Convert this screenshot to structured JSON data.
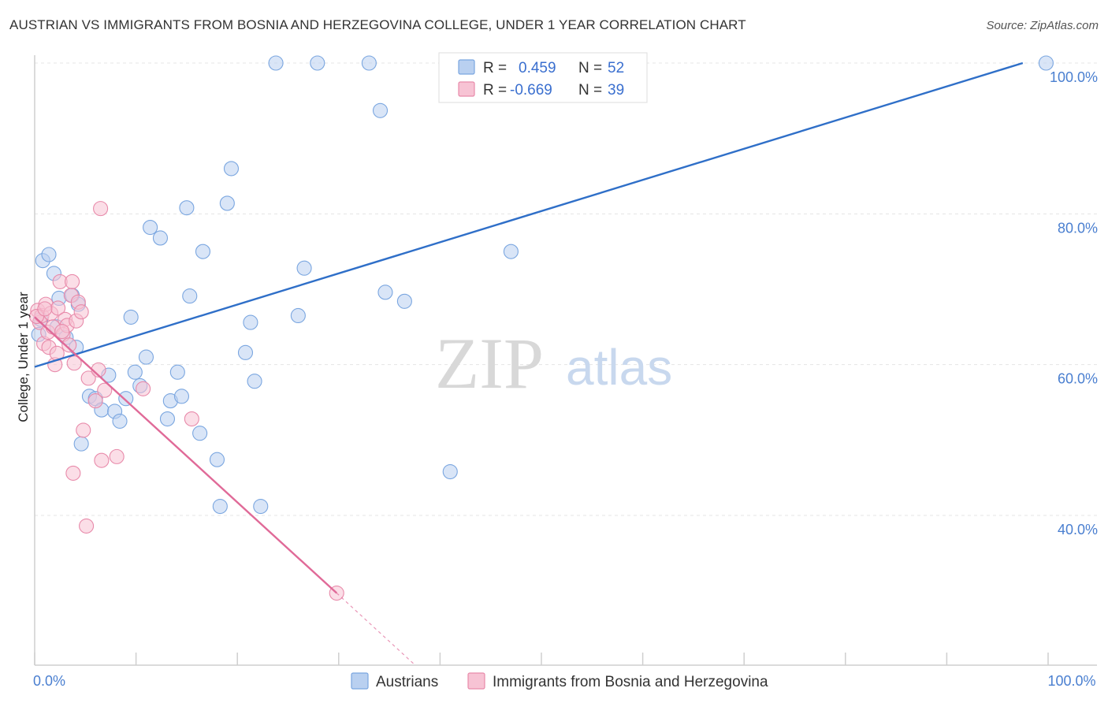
{
  "title": "AUSTRIAN VS IMMIGRANTS FROM BOSNIA AND HERZEGOVINA COLLEGE, UNDER 1 YEAR CORRELATION CHART",
  "source": "Source: ZipAtlas.com",
  "watermark": {
    "zip": "ZIP",
    "atlas": "atlas"
  },
  "colors": {
    "blue": "#7aa6e0",
    "blue_fill": "#b9d0f0",
    "blue_line": "#2f6fc8",
    "pink": "#e88aaa",
    "pink_fill": "#f7c3d4",
    "pink_line": "#e06a98"
  },
  "legend": {
    "rows": [
      {
        "r_label": "R =",
        "r_value": "0.459",
        "n_label": "N =",
        "n_value": "52",
        "series": "blue"
      },
      {
        "r_label": "R =",
        "r_value": "-0.669",
        "n_label": "N =",
        "n_value": "39",
        "series": "pink"
      }
    ]
  },
  "bottom_legend": {
    "items": [
      {
        "label": "Austrians",
        "series": "blue"
      },
      {
        "label": "Immigrants from Bosnia and Herzegovina",
        "series": "pink"
      }
    ]
  },
  "chart_data": {
    "type": "scatter",
    "xlabel": "",
    "ylabel": "College, Under 1 year",
    "xlim": [
      0,
      100
    ],
    "ylim": [
      20,
      103
    ],
    "x_ticks": [
      {
        "value": 0,
        "label": "0.0%"
      },
      {
        "value": 100,
        "label": "100.0%"
      }
    ],
    "x_minor_ticks": [
      0,
      10,
      20,
      30,
      40,
      50,
      60,
      70,
      80,
      90,
      100
    ],
    "y_ticks": [
      {
        "value": 40,
        "label": "40.0%"
      },
      {
        "value": 60,
        "label": "60.0%"
      },
      {
        "value": 80,
        "label": "80.0%"
      },
      {
        "value": 100,
        "label": "100.0%"
      }
    ],
    "grid": true,
    "series": [
      {
        "name": "Austrians",
        "color": "blue",
        "R": 0.459,
        "N": 52,
        "trend": {
          "x": [
            0,
            97.5
          ],
          "y": [
            59.7,
            100
          ]
        },
        "points": [
          [
            0.8,
            73.8
          ],
          [
            1.4,
            74.6
          ],
          [
            1.9,
            72.1
          ],
          [
            2.4,
            68.8
          ],
          [
            3.1,
            63.6
          ],
          [
            3.7,
            69.2
          ],
          [
            4.3,
            68.0
          ],
          [
            4.1,
            62.3
          ],
          [
            5.4,
            55.8
          ],
          [
            6.0,
            55.5
          ],
          [
            6.6,
            54.0
          ],
          [
            7.3,
            58.6
          ],
          [
            7.9,
            53.8
          ],
          [
            8.4,
            52.5
          ],
          [
            9.0,
            55.5
          ],
          [
            9.5,
            66.3
          ],
          [
            9.9,
            59.0
          ],
          [
            10.4,
            57.2
          ],
          [
            11.0,
            61.0
          ],
          [
            11.4,
            78.2
          ],
          [
            12.4,
            76.8
          ],
          [
            13.1,
            52.8
          ],
          [
            13.4,
            55.2
          ],
          [
            14.1,
            59.0
          ],
          [
            14.5,
            55.8
          ],
          [
            15.0,
            80.8
          ],
          [
            15.3,
            69.1
          ],
          [
            16.3,
            50.9
          ],
          [
            16.6,
            75.0
          ],
          [
            18.0,
            47.4
          ],
          [
            18.3,
            41.2
          ],
          [
            19.0,
            81.4
          ],
          [
            19.4,
            86.0
          ],
          [
            20.8,
            61.6
          ],
          [
            21.3,
            65.6
          ],
          [
            21.7,
            57.8
          ],
          [
            22.3,
            41.2
          ],
          [
            23.8,
            100.0
          ],
          [
            26.0,
            66.5
          ],
          [
            26.6,
            72.8
          ],
          [
            27.9,
            100.0
          ],
          [
            33.0,
            100.0
          ],
          [
            34.1,
            93.7
          ],
          [
            34.6,
            69.6
          ],
          [
            36.5,
            68.4
          ],
          [
            41.0,
            45.8
          ],
          [
            47.0,
            75.0
          ],
          [
            99.8,
            100.0
          ],
          [
            0.4,
            64.0
          ],
          [
            2.2,
            65.0
          ],
          [
            4.6,
            49.5
          ],
          [
            0.6,
            66.0
          ]
        ]
      },
      {
        "name": "Immigrants from Bosnia and Herzegovina",
        "color": "pink",
        "R": -0.669,
        "N": 39,
        "trend": {
          "x": [
            0,
            29.8
          ],
          "y": [
            66.3,
            29.7
          ]
        },
        "trend_dashed": {
          "x": [
            29.8,
            37.5
          ],
          "y": [
            29.7,
            20.2
          ]
        },
        "points": [
          [
            0.3,
            67.2
          ],
          [
            0.5,
            65.6
          ],
          [
            0.7,
            66.5
          ],
          [
            0.9,
            62.8
          ],
          [
            1.1,
            68.0
          ],
          [
            1.3,
            64.3
          ],
          [
            1.4,
            62.3
          ],
          [
            1.6,
            66.8
          ],
          [
            1.8,
            65.0
          ],
          [
            2.0,
            60.0
          ],
          [
            2.2,
            61.5
          ],
          [
            2.3,
            67.5
          ],
          [
            2.5,
            71.0
          ],
          [
            2.8,
            64.0
          ],
          [
            3.0,
            66.0
          ],
          [
            3.2,
            65.2
          ],
          [
            3.4,
            62.6
          ],
          [
            3.6,
            69.2
          ],
          [
            3.7,
            71.0
          ],
          [
            3.9,
            60.2
          ],
          [
            4.1,
            65.8
          ],
          [
            4.3,
            68.3
          ],
          [
            4.6,
            67.0
          ],
          [
            4.8,
            51.3
          ],
          [
            5.1,
            38.6
          ],
          [
            5.3,
            58.2
          ],
          [
            6.0,
            55.2
          ],
          [
            6.3,
            59.3
          ],
          [
            6.6,
            47.3
          ],
          [
            6.9,
            56.6
          ],
          [
            3.8,
            45.6
          ],
          [
            6.5,
            80.7
          ],
          [
            8.1,
            47.8
          ],
          [
            10.7,
            56.8
          ],
          [
            15.5,
            52.8
          ],
          [
            29.8,
            29.7
          ],
          [
            0.2,
            66.4
          ],
          [
            1.0,
            67.4
          ],
          [
            2.7,
            64.4
          ]
        ]
      }
    ]
  }
}
